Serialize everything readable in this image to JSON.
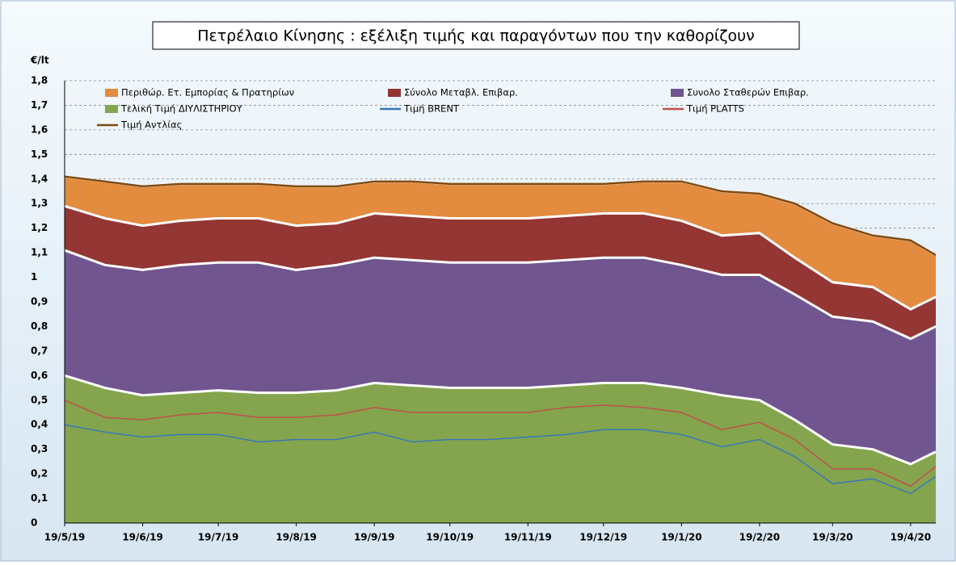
{
  "chart_data": {
    "type": "stacked-area",
    "title": "Πετρέλαιο Κίνησης : εξέλιξη τιμής και παραγόντων που την καθορίζουν",
    "y_label": "€/lt",
    "x": [
      "19/5/19",
      "4/6/19",
      "19/6/19",
      "4/7/19",
      "19/7/19",
      "4/8/19",
      "19/8/19",
      "4/9/19",
      "19/9/19",
      "4/10/19",
      "19/10/19",
      "4/11/19",
      "19/11/19",
      "4/12/19",
      "19/12/19",
      "4/1/20",
      "19/1/20",
      "4/2/20",
      "19/2/20",
      "4/3/20",
      "19/3/20",
      "4/4/20",
      "19/4/20",
      "29/4/20"
    ],
    "xlim": [
      "19/5/19",
      "29/4/20"
    ],
    "xticks": [
      "19/5/19",
      "19/6/19",
      "19/7/19",
      "19/8/19",
      "19/9/19",
      "19/10/19",
      "19/11/19",
      "19/12/19",
      "19/1/20",
      "19/2/20",
      "19/3/20",
      "19/4/20"
    ],
    "ylim": [
      0,
      1.8
    ],
    "yticks": [
      0,
      {
        "value": 0.1,
        "label": "0,1"
      },
      {
        "value": 0.2,
        "label": "0,2"
      },
      {
        "value": 0.3,
        "label": "0,3"
      },
      {
        "value": 0.4,
        "label": "0,4"
      },
      {
        "value": 0.5,
        "label": "0,5"
      },
      {
        "value": 0.6,
        "label": "0,6"
      },
      {
        "value": 0.7,
        "label": "0,7"
      },
      {
        "value": 0.8,
        "label": "0,8"
      },
      {
        "value": 0.9,
        "label": "0,9"
      },
      1,
      {
        "value": 1.1,
        "label": "1,1"
      },
      {
        "value": 1.2,
        "label": "1,2"
      },
      {
        "value": 1.3,
        "label": "1,3"
      },
      {
        "value": 1.4,
        "label": "1,4"
      },
      {
        "value": 1.5,
        "label": "1,5"
      },
      {
        "value": 1.6,
        "label": "1,6"
      },
      {
        "value": 1.7,
        "label": "1,7"
      },
      {
        "value": 1.8,
        "label": "1,8"
      }
    ],
    "grid": true,
    "series": [
      {
        "name": "Περιθώρ. Ετ. Εμπορίας & Πρατηρίων",
        "kind": "area",
        "color": "#e38b3f",
        "values": [
          0.12,
          0.15,
          0.16,
          0.15,
          0.14,
          0.14,
          0.16,
          0.15,
          0.13,
          0.14,
          0.14,
          0.14,
          0.14,
          0.13,
          0.12,
          0.13,
          0.16,
          0.18,
          0.16,
          0.22,
          0.24,
          0.21,
          0.28,
          0.17
        ]
      },
      {
        "name": "Σύνολο Μεταβλ. Επιβαρ.",
        "kind": "area",
        "color": "#943634",
        "values": [
          0.18,
          0.19,
          0.18,
          0.18,
          0.18,
          0.18,
          0.18,
          0.17,
          0.18,
          0.18,
          0.18,
          0.18,
          0.18,
          0.18,
          0.18,
          0.18,
          0.18,
          0.16,
          0.17,
          0.15,
          0.14,
          0.14,
          0.12,
          0.12
        ]
      },
      {
        "name": "Συνολο Σταθερών Επιβαρ.",
        "kind": "area",
        "color": "#70558f",
        "values": [
          0.51,
          0.5,
          0.51,
          0.52,
          0.52,
          0.53,
          0.5,
          0.51,
          0.51,
          0.51,
          0.51,
          0.51,
          0.51,
          0.51,
          0.51,
          0.51,
          0.5,
          0.49,
          0.51,
          0.51,
          0.52,
          0.52,
          0.51,
          0.51
        ]
      },
      {
        "name": "Τελική Τιμή ΔΙΥΛΙΣΤΗΡΙΟΥ",
        "kind": "area",
        "color": "#84a54d",
        "values": [
          0.6,
          0.55,
          0.52,
          0.53,
          0.54,
          0.53,
          0.53,
          0.54,
          0.57,
          0.56,
          0.55,
          0.55,
          0.55,
          0.56,
          0.57,
          0.57,
          0.55,
          0.52,
          0.5,
          0.42,
          0.32,
          0.3,
          0.24,
          0.29
        ]
      },
      {
        "name": "Τιμή BRENT",
        "kind": "line",
        "color": "#3b77b8",
        "values": [
          0.4,
          0.37,
          0.35,
          0.36,
          0.36,
          0.33,
          0.34,
          0.34,
          0.37,
          0.33,
          0.34,
          0.34,
          0.35,
          0.36,
          0.38,
          0.38,
          0.36,
          0.31,
          0.34,
          0.27,
          0.16,
          0.18,
          0.12,
          0.19
        ]
      },
      {
        "name": "Τιμή PLATTS",
        "kind": "line",
        "color": "#c0504d",
        "values": [
          0.5,
          0.43,
          0.42,
          0.44,
          0.45,
          0.43,
          0.43,
          0.44,
          0.47,
          0.45,
          0.45,
          0.45,
          0.45,
          0.47,
          0.48,
          0.47,
          0.45,
          0.38,
          0.41,
          0.34,
          0.22,
          0.22,
          0.15,
          0.23
        ]
      },
      {
        "name": "Τιμή Αντλίας",
        "kind": "line",
        "color": "#7f4a12",
        "values": [
          1.41,
          1.39,
          1.37,
          1.38,
          1.38,
          1.38,
          1.37,
          1.37,
          1.39,
          1.39,
          1.38,
          1.38,
          1.38,
          1.38,
          1.38,
          1.39,
          1.39,
          1.35,
          1.34,
          1.3,
          1.22,
          1.17,
          1.15,
          1.09
        ]
      }
    ]
  }
}
